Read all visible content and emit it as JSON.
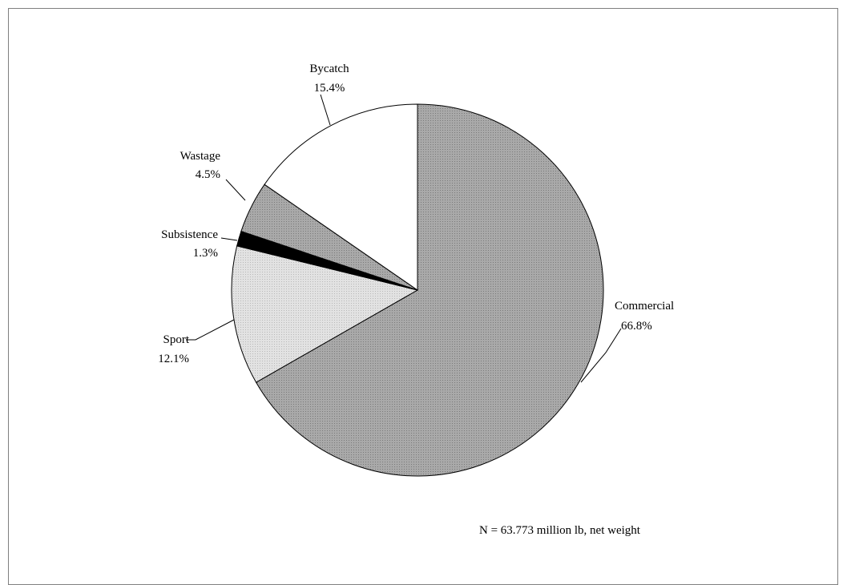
{
  "chart_data": {
    "type": "pie",
    "slices": [
      {
        "label": "Commercial",
        "value": 66.8,
        "value_label": "66.8%",
        "fill": "gray"
      },
      {
        "label": "Sport",
        "value": 12.1,
        "value_label": "12.1%",
        "fill": "lightgray"
      },
      {
        "label": "Subsistence",
        "value": 1.3,
        "value_label": "1.3%",
        "fill": "black"
      },
      {
        "label": "Wastage",
        "value": 4.5,
        "value_label": "4.5%",
        "fill": "gray"
      },
      {
        "label": "Bycatch",
        "value": 15.4,
        "value_label": "15.4%",
        "fill": "white"
      }
    ],
    "start_angle_deg": 90,
    "direction": "clockwise",
    "annotation": "N =  63.773 million lb, net weight"
  },
  "colors": {
    "gray": "#a8a8a8",
    "lightgray": "#dcdcdc",
    "black": "#000000",
    "white": "#ffffff",
    "outline": "#000000"
  }
}
